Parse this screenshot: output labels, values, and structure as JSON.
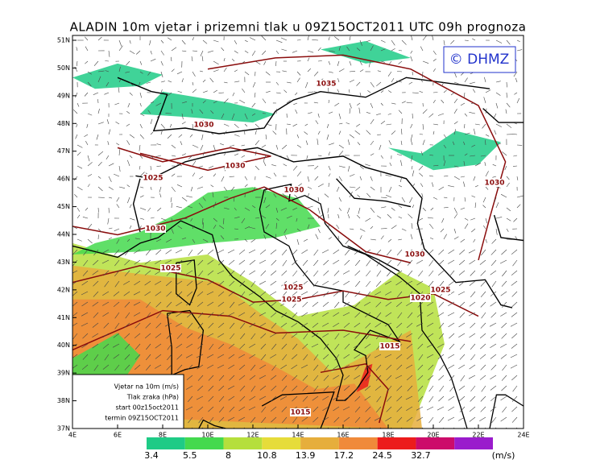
{
  "header": {
    "title": "ALADIN 10m vjetar i prizemni tlak u 09Z15OCT2011 UTC 09h prognoza"
  },
  "logo": "© DHMZ",
  "lat_ticks": [
    "51N",
    "50N",
    "49N",
    "48N",
    "47N",
    "46N",
    "45N",
    "44N",
    "43N",
    "42N",
    "41N",
    "40N",
    "39N",
    "38N",
    "37N"
  ],
  "lon_ticks": [
    "4E",
    "6E",
    "8E",
    "10E",
    "12E",
    "14E",
    "16E",
    "18E",
    "20E",
    "22E",
    "24E"
  ],
  "isobar_labels": [
    1035,
    1030,
    1030,
    1025,
    1030,
    1030,
    1025,
    1030,
    1030,
    1025,
    1020,
    1025,
    1025,
    1015,
    1015
  ],
  "legend": [
    "Vjetar na 10m (m/s)",
    "Tlak zraka (hPa)",
    "start 00z15oct2011",
    "termin 09Z15OCT2011"
  ],
  "colorbar": {
    "levels": [
      3.4,
      5.5,
      8,
      10.8,
      13.9,
      17.2,
      24.5,
      32.7
    ],
    "unit": "(m/s)",
    "colors": [
      "#1ecb86",
      "#44d94e",
      "#b5df3c",
      "#e6dc3a",
      "#e6ae3c",
      "#f08a3a",
      "#ec1c1c",
      "#cc0c6a",
      "#9a1ccc"
    ]
  }
}
